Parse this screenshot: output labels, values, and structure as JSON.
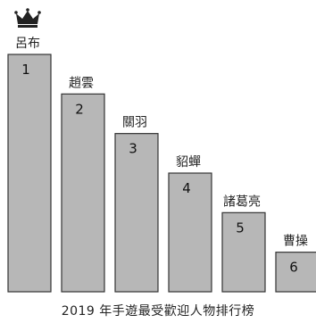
{
  "chart_data": {
    "type": "bar",
    "title": "2019 年手遊最受歡迎人物排行榜",
    "categories": [
      "呂布",
      "趙雲",
      "關羽",
      "貂蟬",
      "諸葛亮",
      "曹操"
    ],
    "values": [
      6,
      5,
      4,
      3,
      2,
      1
    ],
    "data_labels": [
      "1",
      "2",
      "3",
      "4",
      "5",
      "6"
    ],
    "ylim": [
      0,
      6
    ],
    "grid": false,
    "legend": "none",
    "bar_color": "#b7b7b7",
    "bar_outline_color": "#333333",
    "crown_icon": "crown-icon",
    "crown_color": "#222222"
  }
}
